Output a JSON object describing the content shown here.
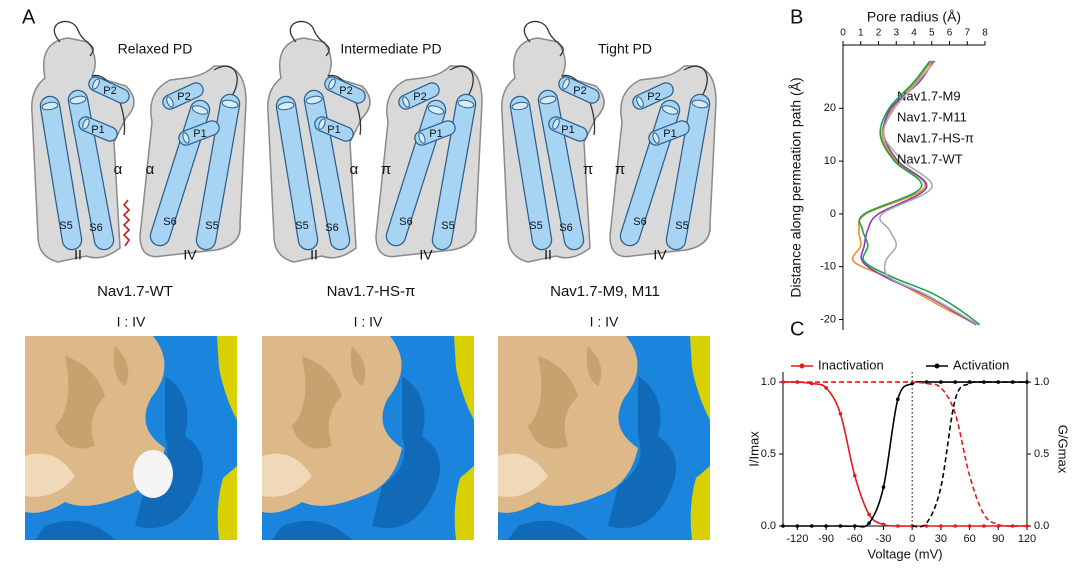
{
  "panel_labels": [
    "A",
    "B",
    "C"
  ],
  "panel_a": {
    "helix_labels": {
      "s5": "S5",
      "s6": "S6",
      "p1": "P1",
      "p2": "P2"
    },
    "panels": [
      {
        "title": "Relaxed PD",
        "left_gap": "α",
        "right_gap": "α",
        "left_domain": "II",
        "right_domain": "IV",
        "caption": "Nav1.7-WT",
        "surface_label": "I : IV"
      },
      {
        "title": "Intermediate PD",
        "left_gap": "α",
        "right_gap": "π",
        "left_domain": "II",
        "right_domain": "IV",
        "caption": "Nav1.7-HS-π",
        "surface_label": "I : IV"
      },
      {
        "title": "Tight PD",
        "left_gap": "π",
        "right_gap": "π",
        "left_domain": "II",
        "right_domain": "IV",
        "caption": "Nav1.7-M9, M11",
        "surface_label": "I : IV"
      }
    ]
  },
  "chart_data": [
    {
      "type": "profile",
      "xlabel": "Pore radius (Å)",
      "ylabel": "Distance along permeation path (Å)",
      "xlim": [
        0,
        8
      ],
      "xticks": [
        0,
        1,
        2,
        3,
        4,
        5,
        6,
        7,
        8
      ],
      "x_axis_position": "top",
      "ylim": [
        -22,
        32
      ],
      "yticks": [
        -20,
        -10,
        0,
        10,
        20
      ],
      "y": [
        29,
        25,
        20,
        15,
        10,
        5,
        0,
        -3,
        -6,
        -9,
        -12,
        -15,
        -18,
        -21
      ],
      "series": [
        {
          "name": "Nav1.7-M9",
          "color": "#f58a2a",
          "values": [
            5.0,
            4.1,
            2.8,
            2.2,
            3.0,
            4.6,
            1.3,
            0.9,
            1.0,
            0.6,
            2.5,
            4.2,
            5.8,
            7.6
          ]
        },
        {
          "name": "Nav1.7-M11",
          "color": "#1aa44a",
          "values": [
            4.9,
            4.0,
            2.6,
            2.1,
            2.9,
            4.4,
            1.2,
            1.1,
            1.4,
            1.2,
            2.8,
            5.0,
            6.5,
            7.7
          ]
        },
        {
          "name": "Nav1.7-HS-π",
          "color": "#8a3ab9",
          "values": [
            5.1,
            4.3,
            2.7,
            2.3,
            3.1,
            4.7,
            2.0,
            1.4,
            1.2,
            1.1,
            2.4,
            4.4,
            6.0,
            7.5
          ]
        },
        {
          "name": "Nav1.7-WT",
          "color": "#aaaaaa",
          "values": [
            5.2,
            4.2,
            2.9,
            2.3,
            3.4,
            5.0,
            2.2,
            2.6,
            3.0,
            2.4,
            2.6,
            4.5,
            6.1,
            7.6
          ]
        }
      ]
    },
    {
      "type": "line",
      "xlabel": "Voltage (mV)",
      "ylabel": "I/Imax",
      "y2label": "G/Gmax",
      "xlim": [
        -135,
        120
      ],
      "xticks": [
        -120,
        -90,
        -60,
        -30,
        0,
        30,
        60,
        90,
        120
      ],
      "ylim": [
        0,
        1.07
      ],
      "yticks": [
        {
          "value": 0,
          "label": "0.0"
        },
        {
          "value": 0.5,
          "label": "0.5"
        },
        {
          "value": 1,
          "label": "1.0"
        }
      ],
      "y2lim": [
        0,
        1.07
      ],
      "y2ticks": [
        {
          "value": 0,
          "label": "0.0"
        },
        {
          "value": 0.5,
          "label": "0.5"
        },
        {
          "value": 1,
          "label": "1.0"
        }
      ],
      "reference_line_x": 0,
      "legend": "top",
      "x": [
        -135,
        -120,
        -105,
        -90,
        -75,
        -60,
        -45,
        -30,
        -15,
        0,
        15,
        30,
        45,
        60,
        75,
        90,
        105,
        120
      ],
      "series": [
        {
          "name": "Inactivation",
          "color": "#e8191c",
          "values": [
            1,
            1,
            0.99,
            0.96,
            0.78,
            0.35,
            0.08,
            0.01,
            0,
            0,
            0,
            0,
            0,
            0,
            0,
            0,
            0,
            0
          ]
        },
        {
          "name": "Activation",
          "color": "#000000",
          "axis": "y2",
          "values": [
            0,
            0,
            0,
            0,
            0,
            0,
            0.02,
            0.27,
            0.88,
            0.99,
            1,
            1,
            1,
            1,
            1,
            1,
            1,
            1
          ]
        },
        {
          "color": "#e8191c",
          "dashed": true,
          "values": [
            1,
            1,
            1,
            1,
            1,
            1,
            1,
            1,
            1,
            1,
            0.99,
            0.96,
            0.78,
            0.35,
            0.08,
            0.01,
            0,
            0
          ]
        },
        {
          "color": "#000000",
          "dashed": true,
          "axis": "y2",
          "values": [
            null,
            null,
            null,
            null,
            null,
            null,
            null,
            null,
            null,
            0,
            0.02,
            0.27,
            0.88,
            0.99,
            1,
            1,
            1,
            1
          ]
        }
      ]
    }
  ]
}
